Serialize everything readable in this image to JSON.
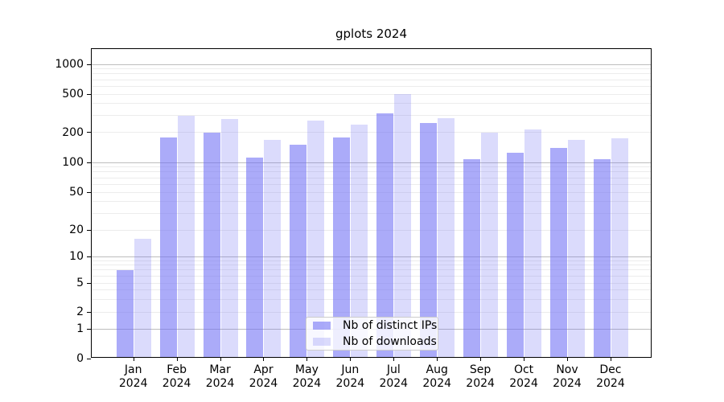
{
  "chart_data": {
    "type": "bar",
    "title": "gplots 2024",
    "categories": [
      "Jan",
      "Feb",
      "Mar",
      "Apr",
      "May",
      "Jun",
      "Jul",
      "Aug",
      "Sep",
      "Oct",
      "Nov",
      "Dec"
    ],
    "x_year_suffix": "2024",
    "series": [
      {
        "name": "Nb of distinct IPs",
        "color": "rgba(110,110,245,0.58)",
        "values": [
          7,
          178,
          199,
          111,
          150,
          176,
          313,
          251,
          108,
          125,
          139,
          108
        ]
      },
      {
        "name": "Nb of downloads",
        "color": "rgba(110,110,245,0.25)",
        "values": [
          16,
          297,
          275,
          168,
          264,
          239,
          500,
          280,
          197,
          213,
          169,
          174
        ]
      }
    ],
    "y_ticks": [
      0,
      1,
      2,
      5,
      10,
      20,
      50,
      100,
      200,
      500,
      1000
    ],
    "y_tick_labels": [
      "0",
      "1",
      "2",
      "5",
      "10",
      "20",
      "50",
      "100",
      "200",
      "500",
      "1000"
    ],
    "y_scale": "log-like (0 baseline, log spacing above 1)",
    "grid": true,
    "legend_position": "inside lower center",
    "colors": {
      "bar_base": "#6e6ef5",
      "major_grid": "#bdbdbd",
      "minor_grid": "#ececec",
      "axis": "#000000",
      "legend_border": "#cccccc",
      "legend_bg": "rgba(255,255,255,0.8)"
    }
  }
}
